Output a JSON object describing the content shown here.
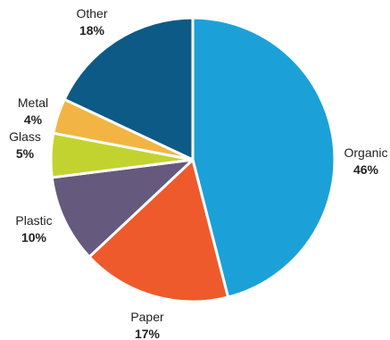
{
  "chart_data": {
    "type": "pie",
    "start": "12 o'clock",
    "direction": "clockwise",
    "slices": [
      {
        "label": "Organic",
        "pct_label": "46%",
        "value": 46,
        "color": "#1BA1D8"
      },
      {
        "label": "Paper",
        "pct_label": "17%",
        "value": 17,
        "color": "#EE5A2B"
      },
      {
        "label": "Plastic",
        "pct_label": "10%",
        "value": 10,
        "color": "#65597D"
      },
      {
        "label": "Glass",
        "pct_label": "5%",
        "value": 5,
        "color": "#C2D32F"
      },
      {
        "label": "Metal",
        "pct_label": "4%",
        "value": 4,
        "color": "#F2B543"
      },
      {
        "label": "Other",
        "pct_label": "18%",
        "value": 18,
        "color": "#0D5A86"
      }
    ]
  }
}
